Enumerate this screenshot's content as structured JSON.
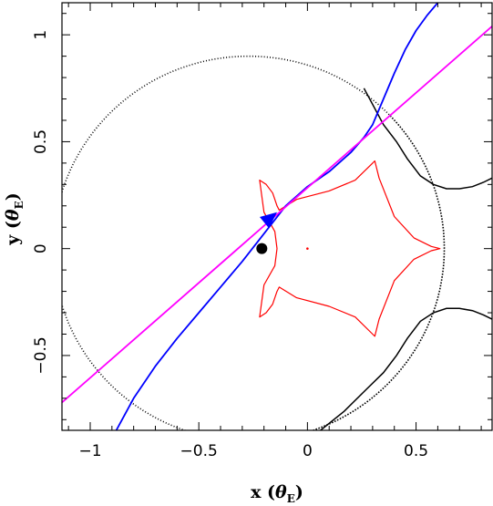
{
  "chart_data": {
    "type": "scatter",
    "xlabel": "x (θE)",
    "ylabel": "y (θE)",
    "xlabel_parts": {
      "var": "x",
      "sym": "θ",
      "sub": "E"
    },
    "ylabel_parts": {
      "var": "y",
      "sym": "θ",
      "sub": "E"
    },
    "xlim": [
      -1.13,
      0.85
    ],
    "ylim": [
      -0.85,
      1.15
    ],
    "x_ticks": [
      -1,
      -0.5,
      0,
      0.5
    ],
    "x_tick_labels": [
      "−1",
      "−0.5",
      "0",
      "0.5"
    ],
    "y_ticks": [
      -0.5,
      0,
      0.5,
      1
    ],
    "y_tick_labels": [
      "−0.5",
      "0",
      "0.5",
      "1"
    ],
    "grid": false,
    "legend": "none",
    "series": [
      {
        "kind": "caustic",
        "color": "#ff0000",
        "x": [
          -0.22,
          -0.19,
          -0.16,
          -0.14,
          -0.13,
          -0.05,
          0.1,
          0.22,
          0.3,
          0.31,
          0.33,
          0.4,
          0.49,
          0.57,
          0.61,
          0.57,
          0.49,
          0.4,
          0.33,
          0.31,
          0.3,
          0.22,
          0.1,
          -0.05,
          -0.13,
          -0.14,
          -0.16,
          -0.19,
          -0.22,
          -0.2,
          -0.15,
          -0.14,
          -0.15,
          -0.2,
          -0.22
        ],
        "y": [
          0.32,
          0.3,
          0.26,
          0.2,
          0.18,
          0.23,
          0.27,
          0.32,
          0.4,
          0.41,
          0.33,
          0.15,
          0.05,
          0.01,
          0.0,
          -0.01,
          -0.05,
          -0.15,
          -0.33,
          -0.41,
          -0.4,
          -0.32,
          -0.27,
          -0.23,
          -0.18,
          -0.2,
          -0.26,
          -0.3,
          -0.32,
          -0.17,
          -0.08,
          0.0,
          0.08,
          0.17,
          0.32
        ]
      },
      {
        "kind": "critical-curve",
        "color": "#000000",
        "dotted": true,
        "center": [
          -0.27,
          0.0
        ],
        "radii": [
          0.9,
          0.9
        ],
        "start_deg": -70,
        "end_deg": 43
      },
      {
        "kind": "critical-curve-upper",
        "color": "#000000",
        "x": [
          0.26,
          0.35,
          0.41,
          0.46,
          0.52,
          0.58,
          0.64,
          0.7,
          0.76,
          0.81,
          0.85
        ],
        "y": [
          0.75,
          0.58,
          0.5,
          0.42,
          0.34,
          0.3,
          0.28,
          0.28,
          0.29,
          0.31,
          0.33
        ]
      },
      {
        "kind": "critical-curve-lower",
        "color": "#000000",
        "x": [
          0.06,
          0.17,
          0.27,
          0.35,
          0.41,
          0.46,
          0.52,
          0.58,
          0.64,
          0.7,
          0.76,
          0.81,
          0.85
        ],
        "y": [
          -0.85,
          -0.76,
          -0.66,
          -0.58,
          -0.5,
          -0.42,
          -0.34,
          -0.3,
          -0.28,
          -0.28,
          -0.29,
          -0.31,
          -0.33
        ]
      },
      {
        "kind": "source-trajectory",
        "color": "#0000ff",
        "x": [
          -0.88,
          -0.8,
          -0.7,
          -0.6,
          -0.5,
          -0.4,
          -0.3,
          -0.2,
          -0.1,
          0.0,
          0.1,
          0.2,
          0.26,
          0.3,
          0.35,
          0.4,
          0.45,
          0.5,
          0.55,
          0.6
        ],
        "y": [
          -0.85,
          -0.7,
          -0.55,
          -0.42,
          -0.3,
          -0.18,
          -0.06,
          0.07,
          0.2,
          0.29,
          0.36,
          0.45,
          0.52,
          0.58,
          0.7,
          0.82,
          0.93,
          1.02,
          1.09,
          1.15
        ]
      },
      {
        "kind": "binary-axis",
        "color": "#ff00ff",
        "x": [
          -1.13,
          0.85
        ],
        "y": [
          -0.72,
          1.04
        ]
      }
    ],
    "markers": [
      {
        "kind": "lens-mass",
        "x": -0.21,
        "y": 0.0,
        "color": "#000000"
      },
      {
        "kind": "lens-mass",
        "x": 0.0,
        "y": 0.0,
        "color": "#ff0000",
        "small": true
      }
    ],
    "arrow": {
      "x": -0.2,
      "y": 0.12,
      "to_x": -0.14,
      "to_y": 0.17,
      "color": "#0000ff"
    }
  }
}
